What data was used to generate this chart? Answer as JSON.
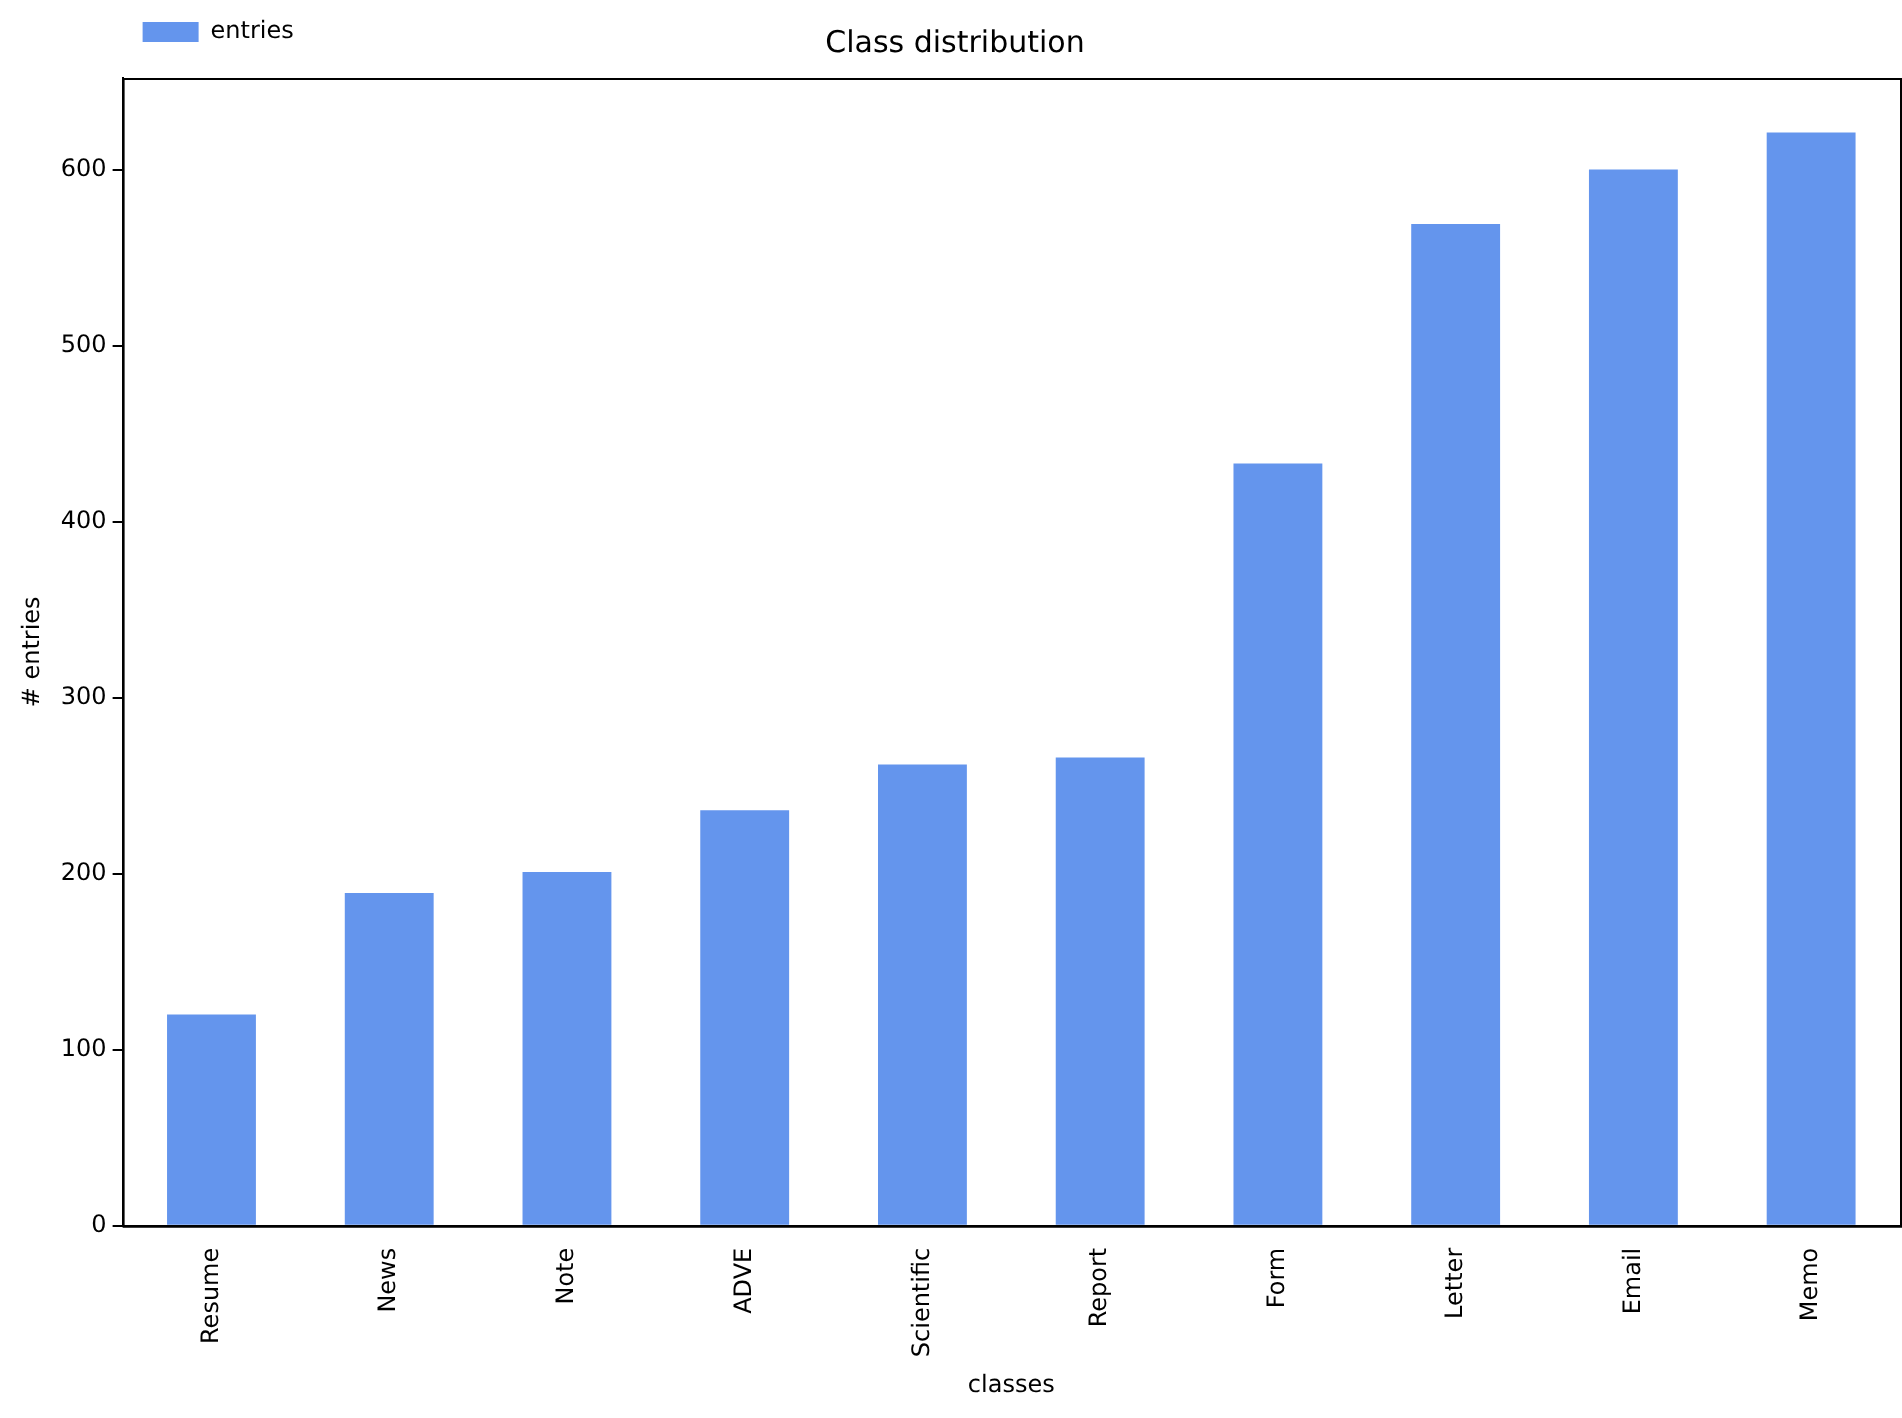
{
  "chart_data": {
    "type": "bar",
    "title": "Class distribution",
    "xlabel": "classes",
    "ylabel": "# entries",
    "categories": [
      "Resume",
      "News",
      "Note",
      "ADVE",
      "Scientific",
      "Report",
      "Form",
      "Letter",
      "Email",
      "Memo"
    ],
    "series": [
      {
        "name": "entries",
        "color": "#6495ed",
        "values": [
          120,
          189,
          201,
          236,
          262,
          266,
          433,
          569,
          600,
          621
        ]
      }
    ],
    "ylim": [
      0,
      652
    ],
    "yticks": [
      0,
      100,
      200,
      300,
      400,
      500,
      600
    ],
    "grid": false,
    "legend": "top left"
  }
}
